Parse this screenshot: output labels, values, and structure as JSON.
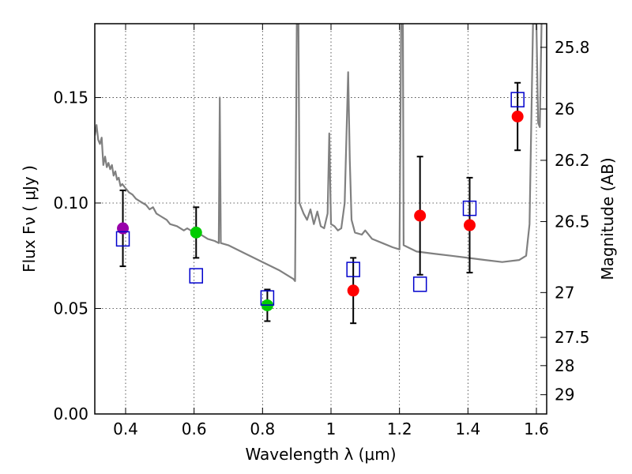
{
  "chart_data": {
    "type": "scatter",
    "xlabel": "Wavelength  λ (μm)",
    "ylabel": "Flux  Fν  ( μJy )",
    "y2label": "Magnitude (AB)",
    "xlim": [
      0.31,
      1.63
    ],
    "ylim": [
      0.0,
      0.185
    ],
    "grid": true,
    "x_ticks": [
      {
        "value": 0.4,
        "label": "0.4"
      },
      {
        "value": 0.6,
        "label": "0.6"
      },
      {
        "value": 0.8,
        "label": "0.8"
      },
      {
        "value": 1.0,
        "label": "1"
      },
      {
        "value": 1.2,
        "label": "1.2"
      },
      {
        "value": 1.4,
        "label": "1.4"
      },
      {
        "value": 1.6,
        "label": "1.6"
      }
    ],
    "y_ticks": [
      {
        "value": 0.0,
        "label": "0.00"
      },
      {
        "value": 0.05,
        "label": "0.05"
      },
      {
        "value": 0.1,
        "label": "0.10"
      },
      {
        "value": 0.15,
        "label": "0.15"
      }
    ],
    "y2_ticks": [
      {
        "value": 25.8,
        "label": "25.8"
      },
      {
        "value": 26.0,
        "label": "26"
      },
      {
        "value": 26.2,
        "label": "26.2"
      },
      {
        "value": 26.5,
        "label": "26.5"
      },
      {
        "value": 27.0,
        "label": "27"
      },
      {
        "value": 27.5,
        "label": "27.5"
      },
      {
        "value": 28.0,
        "label": "28"
      },
      {
        "value": 29.0,
        "label": "29"
      }
    ],
    "series": [
      {
        "kind": "observed",
        "color": "#ff0000",
        "points": [
          {
            "x": 0.392,
            "y": 0.088,
            "err": 0.018,
            "color": "#9900aa"
          },
          {
            "x": 0.606,
            "y": 0.086,
            "err": 0.012,
            "color": "#00cc00"
          },
          {
            "x": 0.814,
            "y": 0.0515,
            "err": 0.0075,
            "color": "#00cc00"
          },
          {
            "x": 1.065,
            "y": 0.0585,
            "err": 0.0155,
            "color": "#ff0000"
          },
          {
            "x": 1.26,
            "y": 0.094,
            "err": 0.028,
            "color": "#ff0000"
          },
          {
            "x": 1.405,
            "y": 0.0895,
            "err": 0.0225,
            "color": "#ff0000"
          },
          {
            "x": 1.545,
            "y": 0.141,
            "err": 0.016,
            "color": "#ff0000"
          }
        ]
      },
      {
        "kind": "model-synthetic",
        "color": "#0000cc",
        "points": [
          {
            "x": 0.392,
            "y": 0.083
          },
          {
            "x": 0.606,
            "y": 0.0655
          },
          {
            "x": 0.814,
            "y": 0.055
          },
          {
            "x": 1.065,
            "y": 0.0685
          },
          {
            "x": 1.26,
            "y": 0.0615
          },
          {
            "x": 1.405,
            "y": 0.0975
          },
          {
            "x": 1.545,
            "y": 0.149
          }
        ]
      },
      {
        "kind": "model-spectrum",
        "color": "#808080",
        "points": [
          [
            0.31,
            0.132
          ],
          [
            0.315,
            0.137
          ],
          [
            0.32,
            0.13
          ],
          [
            0.325,
            0.128
          ],
          [
            0.33,
            0.131
          ],
          [
            0.335,
            0.118
          ],
          [
            0.34,
            0.122
          ],
          [
            0.345,
            0.117
          ],
          [
            0.35,
            0.119
          ],
          [
            0.355,
            0.116
          ],
          [
            0.36,
            0.118
          ],
          [
            0.365,
            0.113
          ],
          [
            0.37,
            0.115
          ],
          [
            0.375,
            0.111
          ],
          [
            0.38,
            0.112
          ],
          [
            0.385,
            0.108
          ],
          [
            0.39,
            0.109
          ],
          [
            0.4,
            0.107
          ],
          [
            0.41,
            0.105
          ],
          [
            0.42,
            0.104
          ],
          [
            0.43,
            0.102
          ],
          [
            0.44,
            0.101
          ],
          [
            0.45,
            0.1
          ],
          [
            0.46,
            0.099
          ],
          [
            0.47,
            0.097
          ],
          [
            0.48,
            0.098
          ],
          [
            0.49,
            0.095
          ],
          [
            0.5,
            0.094
          ],
          [
            0.52,
            0.092
          ],
          [
            0.53,
            0.09
          ],
          [
            0.55,
            0.089
          ],
          [
            0.57,
            0.087
          ],
          [
            0.58,
            0.088
          ],
          [
            0.6,
            0.086
          ],
          [
            0.62,
            0.085
          ],
          [
            0.64,
            0.083
          ],
          [
            0.66,
            0.082
          ],
          [
            0.672,
            0.081
          ],
          [
            0.675,
            0.15
          ],
          [
            0.678,
            0.081
          ],
          [
            0.7,
            0.08
          ],
          [
            0.75,
            0.076
          ],
          [
            0.8,
            0.072
          ],
          [
            0.85,
            0.068
          ],
          [
            0.88,
            0.065
          ],
          [
            0.89,
            0.064
          ],
          [
            0.895,
            0.063
          ],
          [
            0.9,
            0.185
          ],
          [
            0.905,
            0.185
          ],
          [
            0.908,
            0.1
          ],
          [
            0.92,
            0.095
          ],
          [
            0.93,
            0.092
          ],
          [
            0.94,
            0.097
          ],
          [
            0.95,
            0.09
          ],
          [
            0.96,
            0.096
          ],
          [
            0.97,
            0.089
          ],
          [
            0.98,
            0.088
          ],
          [
            0.99,
            0.095
          ],
          [
            0.995,
            0.133
          ],
          [
            1.0,
            0.09
          ],
          [
            1.01,
            0.089
          ],
          [
            1.02,
            0.087
          ],
          [
            1.03,
            0.088
          ],
          [
            1.04,
            0.1
          ],
          [
            1.05,
            0.162
          ],
          [
            1.055,
            0.12
          ],
          [
            1.06,
            0.092
          ],
          [
            1.07,
            0.086
          ],
          [
            1.09,
            0.085
          ],
          [
            1.1,
            0.087
          ],
          [
            1.12,
            0.083
          ],
          [
            1.15,
            0.081
          ],
          [
            1.18,
            0.079
          ],
          [
            1.2,
            0.078
          ],
          [
            1.205,
            0.185
          ],
          [
            1.21,
            0.185
          ],
          [
            1.212,
            0.08
          ],
          [
            1.25,
            0.077
          ],
          [
            1.3,
            0.076
          ],
          [
            1.35,
            0.075
          ],
          [
            1.4,
            0.074
          ],
          [
            1.45,
            0.073
          ],
          [
            1.5,
            0.072
          ],
          [
            1.55,
            0.073
          ],
          [
            1.57,
            0.075
          ],
          [
            1.58,
            0.09
          ],
          [
            1.59,
            0.185
          ],
          [
            1.6,
            0.185
          ],
          [
            1.605,
            0.138
          ],
          [
            1.61,
            0.136
          ],
          [
            1.615,
            0.185
          ]
        ]
      }
    ]
  }
}
